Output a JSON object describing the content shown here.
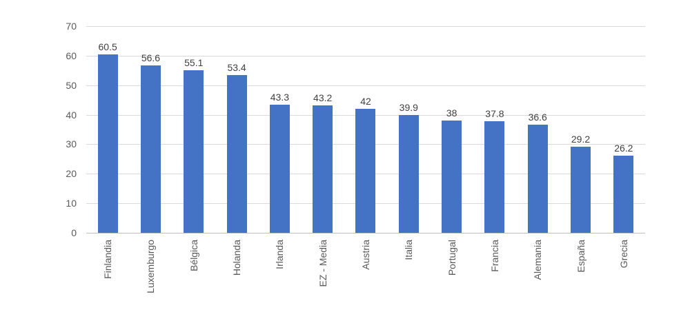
{
  "chart_data": {
    "type": "bar",
    "title": "",
    "xlabel": "",
    "ylabel": "",
    "categories": [
      "Finlandia",
      "Luxemburgo",
      "Bélgica",
      "Holanda",
      "Irlanda",
      "EZ - Media",
      "Austria",
      "Italia",
      "Portugal",
      "Francia",
      "Alemania",
      "España",
      "Grecia"
    ],
    "values": [
      60.5,
      56.6,
      55.1,
      53.4,
      43.3,
      43.2,
      42,
      39.9,
      38,
      37.8,
      36.6,
      29.2,
      26.2
    ],
    "value_labels": [
      "60.5",
      "56.6",
      "55.1",
      "53.4",
      "43.3",
      "43.2",
      "42",
      "39.9",
      "38",
      "37.8",
      "36.6",
      "29.2",
      "26.2"
    ],
    "ylim": [
      0,
      70
    ],
    "y_ticks": [
      0,
      10,
      20,
      30,
      40,
      50,
      60,
      70
    ],
    "grid": "horizontal",
    "legend_position": "none",
    "bar_color": "#4472c4",
    "gridline_color": "#d9d9d9",
    "axis_label_color": "#595959",
    "data_label_color": "#404040"
  }
}
